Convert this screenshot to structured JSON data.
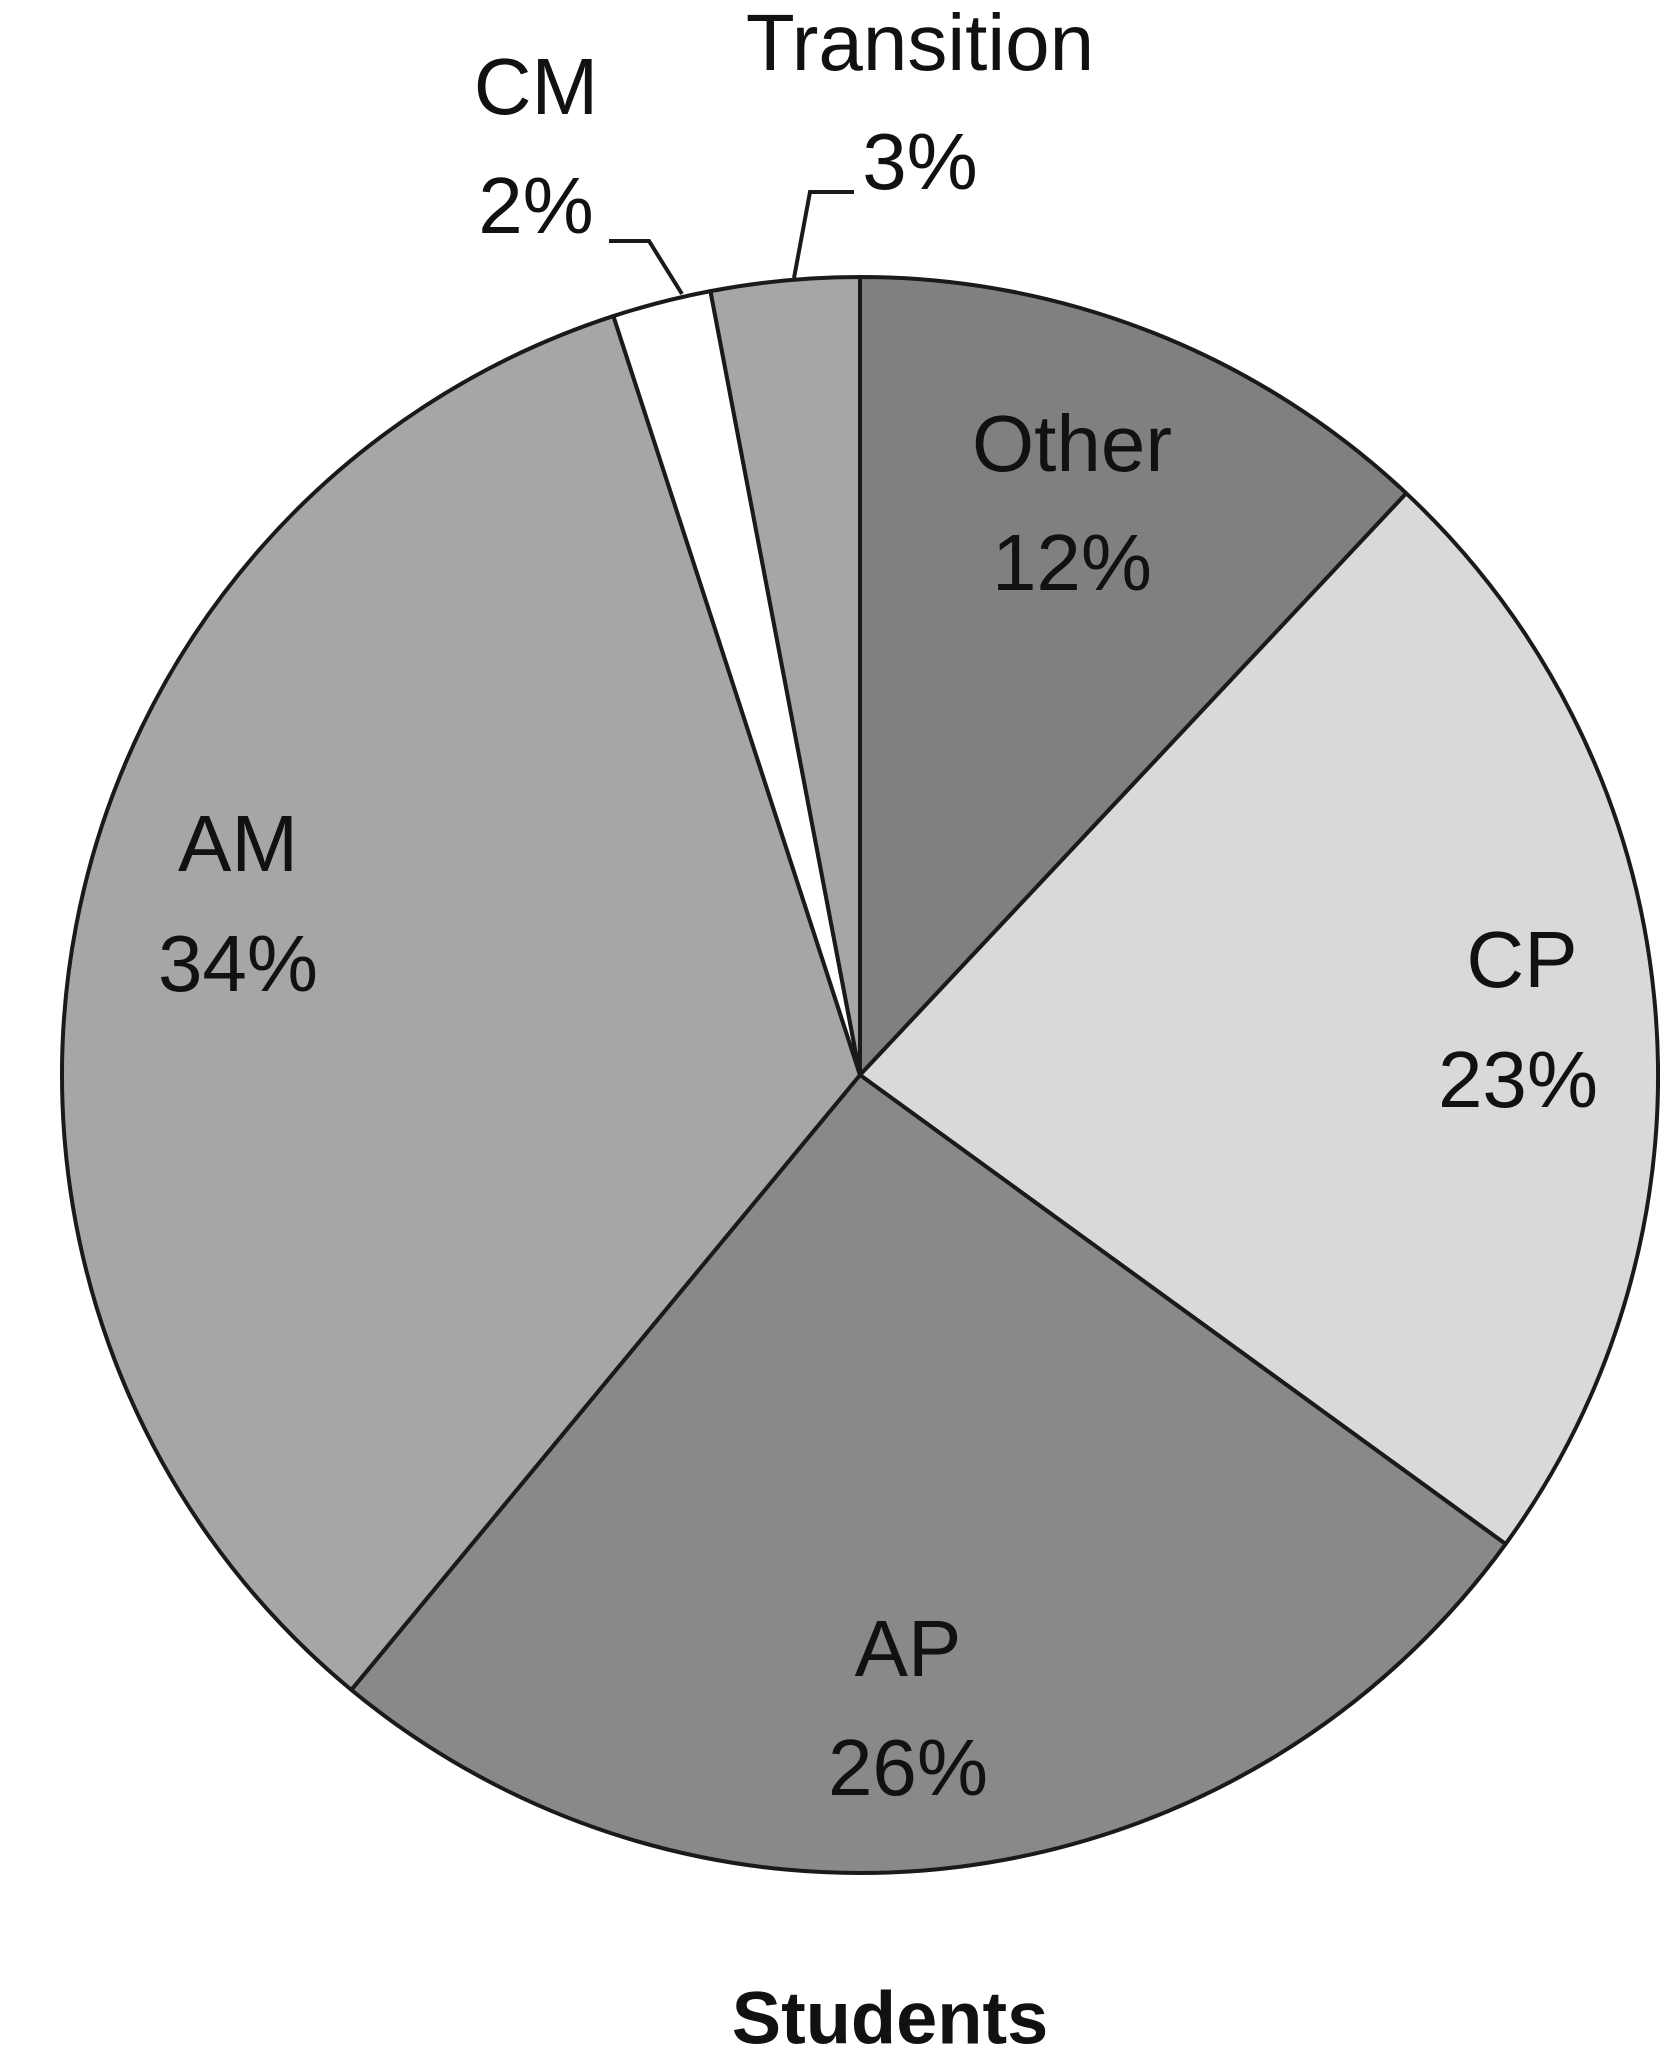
{
  "chart_data": {
    "type": "pie",
    "title": "Students",
    "categories": [
      "Other",
      "CP",
      "AP",
      "AM",
      "CM",
      "Transition"
    ],
    "values": [
      12,
      23,
      26,
      34,
      2,
      3
    ],
    "value_labels": [
      "12%",
      "23%",
      "26%",
      "34%",
      "2%",
      "3%"
    ],
    "colors": [
      "#808080",
      "#d9d9d9",
      "#898989",
      "#a6a6a6",
      "#ffffff",
      "#a6a6a6"
    ]
  }
}
